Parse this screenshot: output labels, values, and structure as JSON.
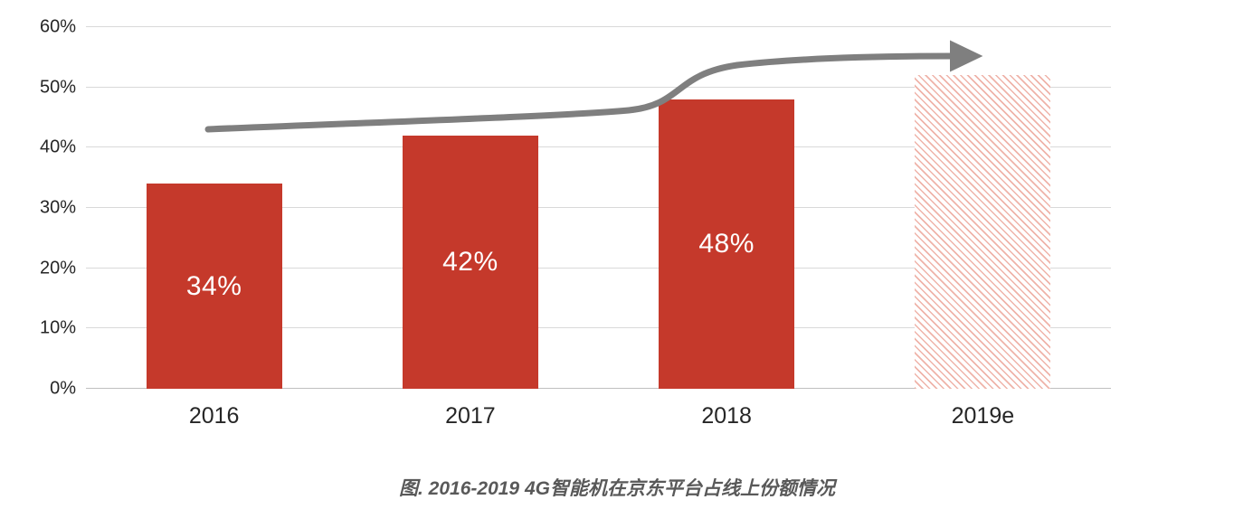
{
  "chart_data": {
    "type": "bar",
    "title": "图. 2016-2019 4G智能机在京东平台占线上份额情况",
    "categories": [
      "2016",
      "2017",
      "2018",
      "2019e"
    ],
    "values": [
      34,
      42,
      48,
      52
    ],
    "bar_labels": [
      "34%",
      "42%",
      "48%",
      ""
    ],
    "ylim": [
      0,
      60
    ],
    "yticks": [
      "0%",
      "10%",
      "20%",
      "30%",
      "40%",
      "50%",
      "60%"
    ],
    "ytick_values": [
      0,
      10,
      20,
      30,
      40,
      50,
      60
    ],
    "grid": true,
    "legend": false,
    "xlabel": "",
    "ylabel": "",
    "bar_color": "#C5392B",
    "forecast_index": 3,
    "forecast_style": "diagonal-hatch",
    "hatch_color": "#EFB3A9",
    "arrow_color": "#7F7F7F",
    "annotation": {
      "type": "trend-arrow",
      "from_value_pct": 43,
      "to_value_pct": 55
    }
  }
}
